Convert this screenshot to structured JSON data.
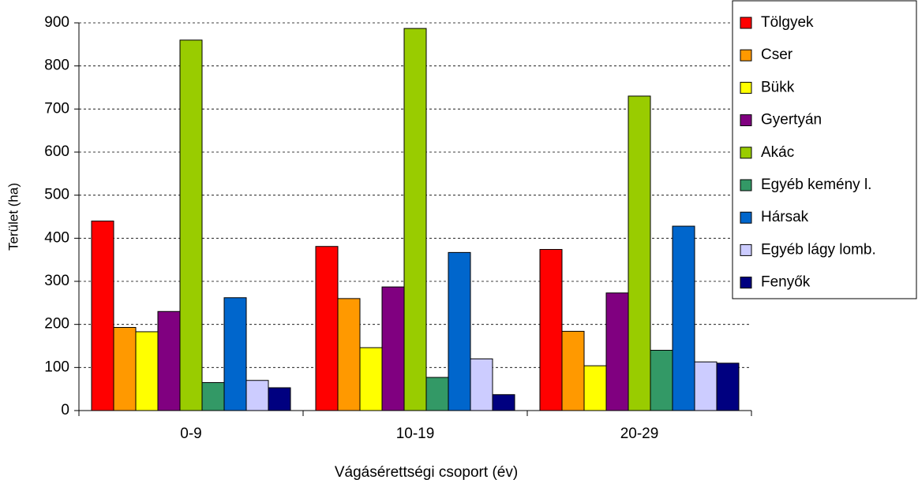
{
  "chart_data": {
    "type": "bar",
    "x_label": "Vágásérettségi csoport (év)",
    "y_label": "Terület (ha)",
    "categories": [
      "0-9",
      "10-19",
      "20-29"
    ],
    "series": [
      {
        "name": "Tölgyek",
        "color": "#ff0000",
        "values": [
          440,
          381,
          374
        ]
      },
      {
        "name": "Cser",
        "color": "#ff9900",
        "values": [
          193,
          260,
          184
        ]
      },
      {
        "name": "Bükk",
        "color": "#ffff00",
        "values": [
          183,
          146,
          104
        ]
      },
      {
        "name": "Gyertyán",
        "color": "#800080",
        "values": [
          230,
          287,
          273
        ]
      },
      {
        "name": "Akác",
        "color": "#99cc00",
        "values": [
          860,
          887,
          730
        ]
      },
      {
        "name": "Egyéb kemény l.",
        "color": "#339966",
        "values": [
          65,
          77,
          140
        ]
      },
      {
        "name": "Hársak",
        "color": "#0066cc",
        "values": [
          262,
          367,
          428
        ]
      },
      {
        "name": "Egyéb lágy lomb.",
        "color": "#ccccff",
        "values": [
          70,
          120,
          113
        ]
      },
      {
        "name": "Fenyők",
        "color": "#000080",
        "values": [
          53,
          37,
          110
        ]
      }
    ],
    "ylim": [
      0,
      900
    ],
    "yticks": [
      0,
      100,
      200,
      300,
      400,
      500,
      600,
      700,
      800,
      900
    ],
    "grid": true,
    "legend": "right"
  }
}
